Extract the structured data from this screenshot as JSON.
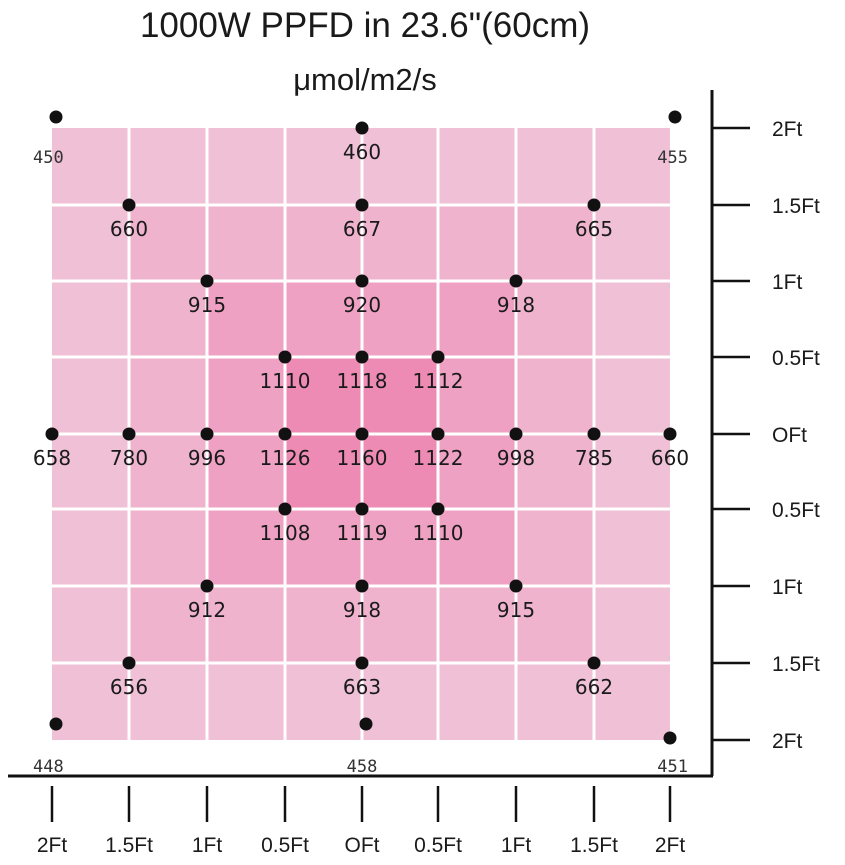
{
  "chart_data": {
    "type": "heatmap",
    "title": "1000W PPFD in 23.6\"(60cm)",
    "subtitle": "μmol/m2/s",
    "x_tick_labels": [
      "2Ft",
      "1.5Ft",
      "1Ft",
      "0.5Ft",
      "OFt",
      "0.5Ft",
      "1Ft",
      "1.5Ft",
      "2Ft"
    ],
    "y_tick_labels": [
      "2Ft",
      "1.5Ft",
      "1Ft",
      "0.5Ft",
      "OFt",
      "0.5Ft",
      "1Ft",
      "1.5Ft",
      "2Ft"
    ],
    "colors": {
      "light": "#efc0d6",
      "dark": "#ee7fae",
      "grid": "#ffffff",
      "point": "#111111"
    },
    "points": [
      {
        "col": 0,
        "row": 0,
        "value": 450,
        "style": "corner"
      },
      {
        "col": 4,
        "row": 0,
        "value": 460
      },
      {
        "col": 8,
        "row": 0,
        "value": 455,
        "style": "corner"
      },
      {
        "col": 1,
        "row": 1,
        "value": 660
      },
      {
        "col": 4,
        "row": 1,
        "value": 667
      },
      {
        "col": 7,
        "row": 1,
        "value": 665
      },
      {
        "col": 2,
        "row": 2,
        "value": 915
      },
      {
        "col": 4,
        "row": 2,
        "value": 920
      },
      {
        "col": 6,
        "row": 2,
        "value": 918
      },
      {
        "col": 3,
        "row": 3,
        "value": 1110
      },
      {
        "col": 4,
        "row": 3,
        "value": 1118
      },
      {
        "col": 5,
        "row": 3,
        "value": 1112
      },
      {
        "col": 0,
        "row": 4,
        "value": 658
      },
      {
        "col": 1,
        "row": 4,
        "value": 780
      },
      {
        "col": 2,
        "row": 4,
        "value": 996
      },
      {
        "col": 3,
        "row": 4,
        "value": 1126
      },
      {
        "col": 4,
        "row": 4,
        "value": 1160
      },
      {
        "col": 5,
        "row": 4,
        "value": 1122
      },
      {
        "col": 6,
        "row": 4,
        "value": 998
      },
      {
        "col": 7,
        "row": 4,
        "value": 785
      },
      {
        "col": 8,
        "row": 4,
        "value": 660
      },
      {
        "col": 3,
        "row": 5,
        "value": 1108
      },
      {
        "col": 4,
        "row": 5,
        "value": 1119
      },
      {
        "col": 5,
        "row": 5,
        "value": 1110
      },
      {
        "col": 2,
        "row": 6,
        "value": 912
      },
      {
        "col": 4,
        "row": 6,
        "value": 918
      },
      {
        "col": 6,
        "row": 6,
        "value": 915
      },
      {
        "col": 1,
        "row": 7,
        "value": 656
      },
      {
        "col": 4,
        "row": 7,
        "value": 663
      },
      {
        "col": 7,
        "row": 7,
        "value": 662
      },
      {
        "col": 0,
        "row": 8,
        "value": 448,
        "style": "corner"
      },
      {
        "col": 4,
        "row": 8,
        "value": 458,
        "style": "corner"
      },
      {
        "col": 8,
        "row": 8,
        "value": 451,
        "style": "corner"
      }
    ]
  }
}
